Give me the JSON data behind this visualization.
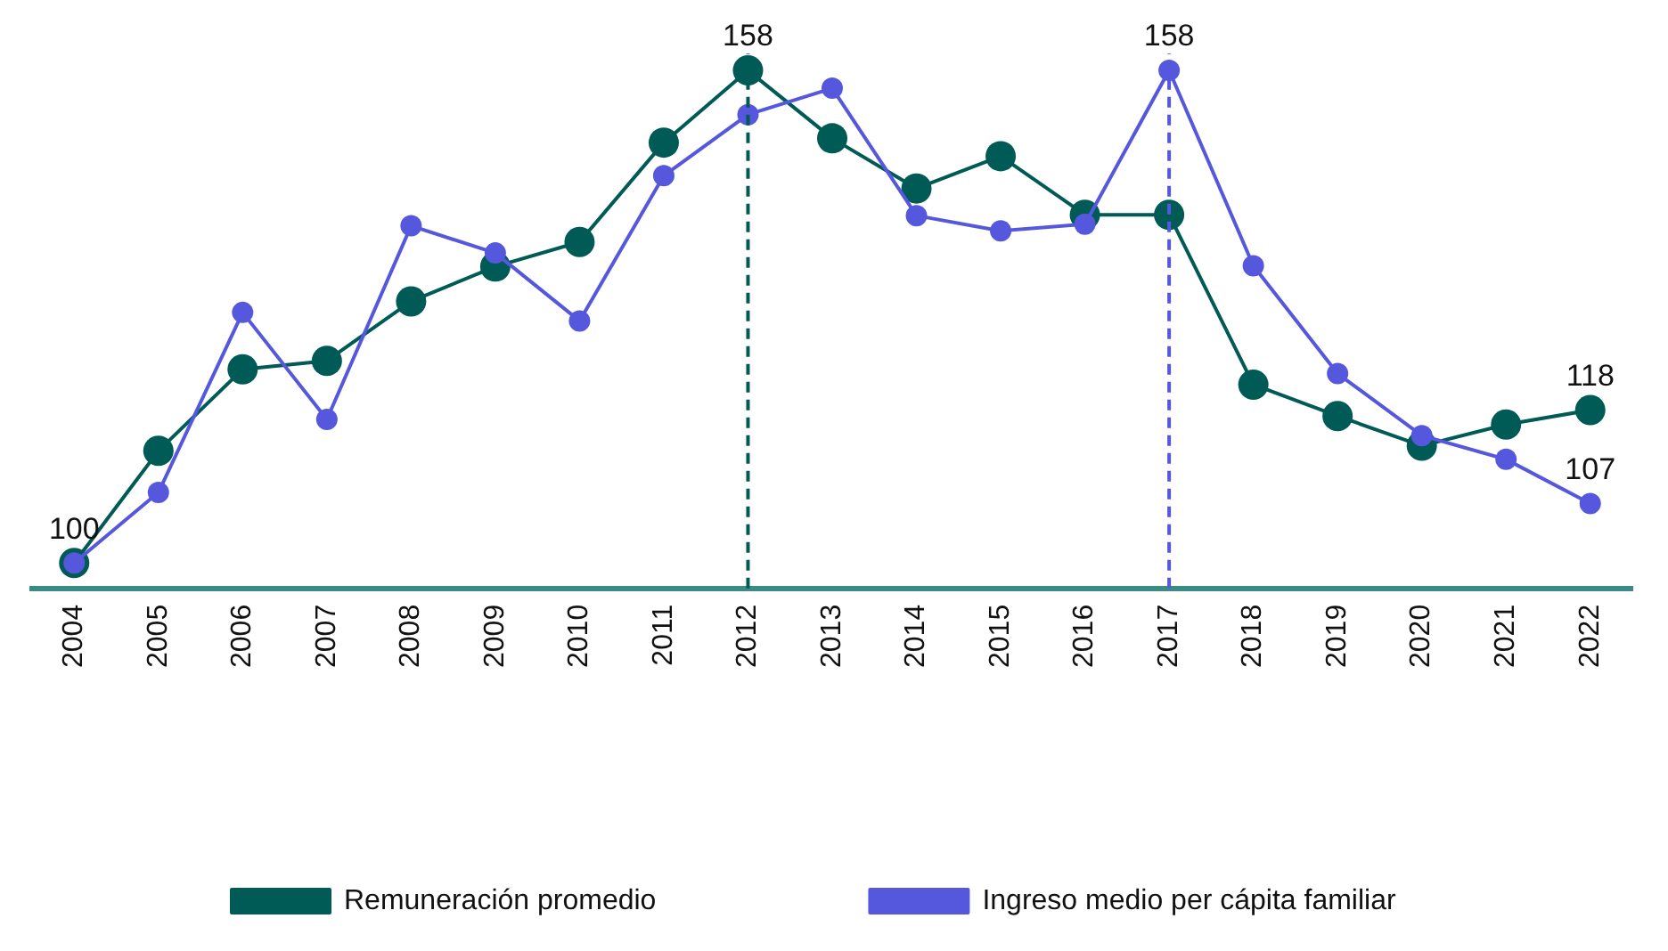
{
  "chart_data": {
    "type": "line",
    "categories": [
      "2004",
      "2005",
      "2006",
      "2007",
      "2008",
      "2009",
      "2010",
      "2011",
      "2012",
      "2013",
      "2014",
      "2015",
      "2016",
      "2017",
      "2018",
      "2019",
      "2020",
      "2021",
      "2022"
    ],
    "series": [
      {
        "name": "Remuneración promedio",
        "color": "#005a55",
        "values": [
          100,
          113.2,
          122.8,
          123.8,
          130.8,
          134.9,
          137.8,
          149.5,
          158,
          150,
          144.1,
          147.9,
          141,
          141,
          121,
          117.3,
          113.8,
          116.3,
          118
        ],
        "value_labels": [
          "100",
          null,
          null,
          null,
          null,
          null,
          null,
          null,
          "158",
          null,
          null,
          null,
          null,
          null,
          null,
          null,
          null,
          null,
          "118"
        ]
      },
      {
        "name": "Ingreso medio per cápita familiar",
        "color": "#5558dc",
        "values": [
          100,
          108.3,
          129.5,
          116.9,
          139.7,
          136.5,
          128.5,
          145.6,
          152.8,
          155.9,
          140.9,
          139.1,
          139.9,
          158,
          135,
          122.3,
          115,
          112.2,
          107
        ],
        "value_labels": [
          null,
          null,
          null,
          null,
          null,
          null,
          null,
          null,
          null,
          null,
          null,
          null,
          null,
          "158",
          null,
          null,
          null,
          null,
          "107"
        ]
      }
    ],
    "ylim": [
      97,
      160
    ],
    "tick_labels": "x",
    "grid": false,
    "legend": "bottom",
    "marker": "circle",
    "line_style": "solid",
    "ref_lines": [
      {
        "axis": "x",
        "value": "2012",
        "color": "#005a55",
        "line_style": "dashed"
      },
      {
        "axis": "x",
        "value": "2017",
        "color": "#5558dc",
        "line_style": "dashed"
      }
    ]
  }
}
